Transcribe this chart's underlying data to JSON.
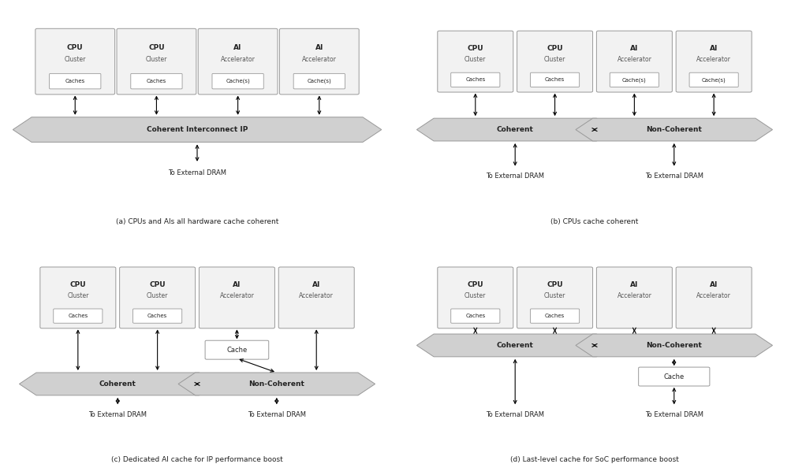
{
  "bg_color": "#ffffff",
  "box_fill": "#f2f2f2",
  "box_edge": "#999999",
  "banner_fill": "#d0d0d0",
  "banner_edge": "#999999",
  "text_dark": "#222222",
  "text_mid": "#555555",
  "diagrams": [
    {
      "id": "a",
      "caption": "(a) CPUs and AIs all hardware cache coherent",
      "top_boxes": [
        {
          "title": "CPU",
          "sub": "Cluster",
          "inner": "Caches"
        },
        {
          "title": "CPU",
          "sub": "Cluster",
          "inner": "Caches"
        },
        {
          "title": "AI",
          "sub": "Accelerator",
          "inner": "Cache(s)"
        },
        {
          "title": "AI",
          "sub": "Accelerator",
          "inner": "Cache(s)"
        }
      ],
      "type": "single_banner",
      "banner_label": "Coherent Interconnect IP"
    },
    {
      "id": "b",
      "caption": "(b) CPUs cache coherent",
      "top_boxes": [
        {
          "title": "CPU",
          "sub": "Cluster",
          "inner": "Caches"
        },
        {
          "title": "CPU",
          "sub": "Cluster",
          "inner": "Caches"
        },
        {
          "title": "AI",
          "sub": "Accelerator",
          "inner": "Cache(s)"
        },
        {
          "title": "AI",
          "sub": "Accelerator",
          "inner": "Cache(s)"
        }
      ],
      "type": "dual_banner",
      "left_label": "Coherent",
      "right_label": "Non-Coherent",
      "mid_cache": false,
      "bottom_cache": false
    },
    {
      "id": "c",
      "caption": "(c) Dedicated AI cache for IP performance boost",
      "top_boxes": [
        {
          "title": "CPU",
          "sub": "Cluster",
          "inner": "Caches"
        },
        {
          "title": "CPU",
          "sub": "Cluster",
          "inner": "Caches"
        },
        {
          "title": "AI",
          "sub": "Accelerator",
          "inner": null
        },
        {
          "title": "AI",
          "sub": "Accelerator",
          "inner": null
        }
      ],
      "type": "dual_banner",
      "left_label": "Coherent",
      "right_label": "Non-Coherent",
      "mid_cache": true,
      "bottom_cache": false
    },
    {
      "id": "d",
      "caption": "(d) Last-level cache for SoC performance boost",
      "top_boxes": [
        {
          "title": "CPU",
          "sub": "Cluster",
          "inner": "Caches"
        },
        {
          "title": "CPU",
          "sub": "Cluster",
          "inner": "Caches"
        },
        {
          "title": "AI",
          "sub": "Accelerator",
          "inner": null
        },
        {
          "title": "AI",
          "sub": "Accelerator",
          "inner": null
        }
      ],
      "type": "dual_banner",
      "left_label": "Coherent",
      "right_label": "Non-Coherent",
      "mid_cache": false,
      "bottom_cache": true
    }
  ]
}
